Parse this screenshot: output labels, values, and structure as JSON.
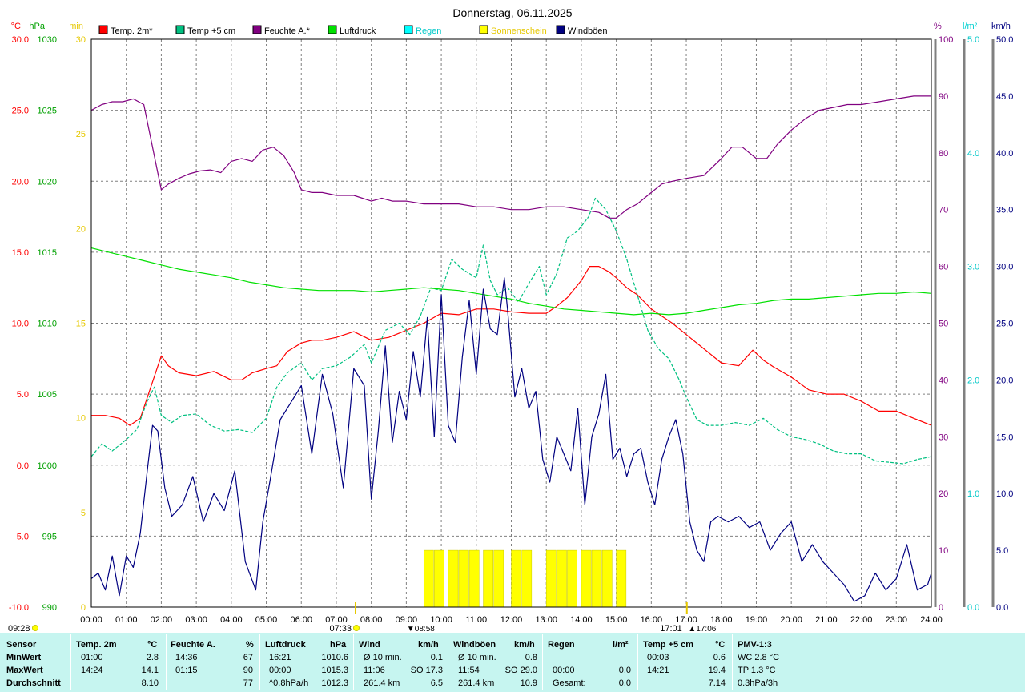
{
  "chart_data": {
    "type": "line",
    "title": "Donnerstag, 06.11.2025",
    "x_ticks": [
      "00:00",
      "01:00",
      "02:00",
      "03:00",
      "04:00",
      "05:00",
      "06:00",
      "07:00",
      "08:00",
      "09:00",
      "10:00",
      "11:00",
      "12:00",
      "13:00",
      "14:00",
      "15:00",
      "16:00",
      "17:00",
      "18:00",
      "19:00",
      "20:00",
      "21:00",
      "22:00",
      "23:00",
      "24:00"
    ],
    "axes": {
      "temp_c": {
        "unit": "°C",
        "color": "#ff0000",
        "ticks": [
          "30.0",
          "25.0",
          "20.0",
          "15.0",
          "10.0",
          "5.0",
          "0.0",
          "-5.0",
          "-10.0"
        ],
        "ylim": [
          -10,
          30
        ]
      },
      "pressure_hpa": {
        "unit": "hPa",
        "color": "#00a000",
        "ticks": [
          "1030",
          "1025",
          "1020",
          "1015",
          "1010",
          "1005",
          "1000",
          "995",
          "990"
        ],
        "ylim": [
          990,
          1030
        ]
      },
      "sunshine_min": {
        "unit": "min",
        "color": "#e6c800",
        "ticks": [
          "30",
          "25",
          "20",
          "15",
          "10",
          "5",
          "0"
        ],
        "ylim": [
          0,
          30
        ]
      },
      "humidity_pct": {
        "unit": "%",
        "color": "#800080",
        "ticks": [
          "100",
          "90",
          "80",
          "70",
          "60",
          "50",
          "40",
          "30",
          "20",
          "10",
          "0"
        ],
        "ylim": [
          0,
          100
        ]
      },
      "rain_lm2": {
        "unit": "l/m²",
        "color": "#00d0d0",
        "ticks": [
          "5.0",
          "4.0",
          "3.0",
          "2.0",
          "1.0",
          "0.0"
        ],
        "ylim": [
          0,
          5
        ]
      },
      "gust_kmh": {
        "unit": "km/h",
        "color": "#000080",
        "ticks": [
          "50.0",
          "45.0",
          "40.0",
          "35.0",
          "30.0",
          "25.0",
          "20.0",
          "15.0",
          "10.0",
          "5.0",
          "0.0"
        ],
        "ylim": [
          0,
          50
        ]
      }
    },
    "legend": [
      {
        "label": "Temp. 2m*",
        "color": "#ff0000"
      },
      {
        "label": "Temp +5 cm",
        "color": "#00c080"
      },
      {
        "label": "Feuchte A.*",
        "color": "#800080"
      },
      {
        "label": "Luftdruck",
        "color": "#00e000"
      },
      {
        "label": "Regen",
        "color": "#00ffff"
      },
      {
        "label": "Sonnenschein",
        "color": "#ffff00"
      },
      {
        "label": "Windböen",
        "color": "#000080"
      }
    ],
    "series": [
      {
        "name": "Temp. 2m*",
        "axis": "temp_c",
        "color": "#ff0000",
        "x": [
          0,
          0.4,
          0.8,
          1.1,
          1.4,
          1.7,
          2.0,
          2.2,
          2.5,
          3.0,
          3.5,
          4.0,
          4.3,
          4.6,
          5.0,
          5.3,
          5.6,
          6.0,
          6.3,
          6.6,
          7.0,
          7.5,
          8.0,
          8.5,
          9.0,
          9.5,
          10.0,
          10.5,
          11.0,
          11.5,
          12.0,
          12.5,
          13.0,
          13.3,
          13.6,
          14.0,
          14.24,
          14.5,
          14.8,
          15.0,
          15.3,
          15.6,
          16.0,
          16.3,
          16.6,
          17.0,
          17.5,
          18.0,
          18.5,
          18.9,
          19.2,
          19.5,
          20.0,
          20.5,
          21.0,
          21.5,
          22.0,
          22.5,
          23.0,
          23.5,
          24.0
        ],
        "y": [
          3.5,
          3.5,
          3.3,
          2.8,
          3.3,
          5.5,
          7.7,
          7.0,
          6.5,
          6.3,
          6.6,
          6.0,
          6.0,
          6.5,
          6.8,
          7.0,
          8.0,
          8.6,
          8.8,
          8.8,
          9.0,
          9.4,
          8.8,
          9.0,
          9.5,
          10.0,
          10.7,
          10.6,
          11.0,
          11.0,
          10.8,
          10.7,
          10.7,
          11.2,
          11.8,
          13.0,
          14.0,
          14.0,
          13.6,
          13.2,
          12.5,
          12.0,
          11.0,
          10.5,
          10.0,
          9.2,
          8.2,
          7.2,
          7.0,
          8.1,
          7.4,
          6.9,
          6.2,
          5.3,
          5.0,
          5.0,
          4.5,
          3.8,
          3.8,
          3.3,
          2.8
        ]
      },
      {
        "name": "Temp +5 cm",
        "axis": "temp_c",
        "color": "#00c080",
        "x": [
          0,
          0.3,
          0.6,
          1.0,
          1.3,
          1.6,
          1.8,
          2.0,
          2.3,
          2.6,
          3.0,
          3.4,
          3.8,
          4.2,
          4.6,
          5.0,
          5.3,
          5.6,
          6.0,
          6.3,
          6.6,
          7.0,
          7.4,
          7.8,
          8.0,
          8.4,
          8.8,
          9.1,
          9.4,
          9.7,
          10.0,
          10.3,
          10.6,
          11.0,
          11.2,
          11.4,
          11.6,
          11.9,
          12.2,
          12.5,
          12.8,
          13.0,
          13.3,
          13.6,
          13.9,
          14.21,
          14.4,
          14.7,
          15.0,
          15.3,
          15.6,
          15.9,
          16.2,
          16.5,
          16.8,
          17.0,
          17.3,
          17.6,
          18.0,
          18.4,
          18.8,
          19.2,
          19.6,
          20.0,
          20.4,
          20.8,
          21.2,
          21.6,
          22.0,
          22.4,
          22.8,
          23.2,
          23.6,
          24.0
        ],
        "y": [
          0.6,
          1.5,
          1.0,
          1.8,
          2.5,
          4.5,
          5.5,
          3.5,
          3.0,
          3.5,
          3.6,
          2.8,
          2.4,
          2.5,
          2.3,
          3.3,
          5.5,
          6.5,
          7.2,
          6.0,
          6.8,
          7.0,
          7.6,
          8.5,
          7.2,
          9.5,
          10.0,
          9.2,
          10.5,
          12.5,
          12.3,
          14.5,
          13.8,
          13.2,
          15.5,
          13.0,
          12.0,
          12.5,
          11.5,
          12.8,
          14.0,
          12.0,
          13.5,
          16.0,
          16.5,
          17.5,
          18.8,
          18.0,
          16.5,
          14.5,
          12.0,
          9.5,
          8.2,
          7.5,
          6.0,
          4.8,
          3.2,
          2.8,
          2.8,
          3.0,
          2.8,
          3.3,
          2.5,
          2.0,
          1.8,
          1.5,
          1.0,
          0.8,
          0.8,
          0.3,
          0.2,
          0.1,
          0.4,
          0.6
        ]
      },
      {
        "name": "Feuchte A.*",
        "axis": "humidity_pct",
        "color": "#800080",
        "x": [
          0,
          0.3,
          0.6,
          0.9,
          1.2,
          1.5,
          1.7,
          1.9,
          2.0,
          2.2,
          2.5,
          2.8,
          3.1,
          3.4,
          3.7,
          4.0,
          4.3,
          4.6,
          4.9,
          5.2,
          5.5,
          5.8,
          6.0,
          6.3,
          6.6,
          7.0,
          7.5,
          8.0,
          8.3,
          8.6,
          9.0,
          9.5,
          10.0,
          10.5,
          11.0,
          11.5,
          12.0,
          12.5,
          13.0,
          13.5,
          14.0,
          14.5,
          14.8,
          15.0,
          15.3,
          15.6,
          16.0,
          16.3,
          16.6,
          17.0,
          17.5,
          18.0,
          18.3,
          18.6,
          19.0,
          19.3,
          19.6,
          20.0,
          20.4,
          20.8,
          21.2,
          21.6,
          22.0,
          22.5,
          23.0,
          23.5,
          24.0
        ],
        "y": [
          87.5,
          88.5,
          89.0,
          89.0,
          89.5,
          88.5,
          82.5,
          76.5,
          73.5,
          74.5,
          75.5,
          76.3,
          76.8,
          77.0,
          76.5,
          78.5,
          79.0,
          78.5,
          80.5,
          81.0,
          79.5,
          76.5,
          73.5,
          73.0,
          73.0,
          72.5,
          72.5,
          71.5,
          72.0,
          71.5,
          71.5,
          71.0,
          71.0,
          71.0,
          70.5,
          70.5,
          70.0,
          70.0,
          70.5,
          70.5,
          70.0,
          69.5,
          68.5,
          68.5,
          70.0,
          71.0,
          73.0,
          74.5,
          75.0,
          75.5,
          76.0,
          79.0,
          81.0,
          81.0,
          79.0,
          79.0,
          81.5,
          84.0,
          86.0,
          87.5,
          88.0,
          88.5,
          88.5,
          89.0,
          89.5,
          90.0,
          90.0
        ]
      },
      {
        "name": "Luftdruck",
        "axis": "pressure_hpa",
        "color": "#00e000",
        "x": [
          0,
          0.5,
          1.0,
          1.5,
          2.0,
          2.5,
          3.0,
          3.5,
          4.0,
          4.5,
          5.0,
          5.5,
          6.0,
          6.5,
          7.0,
          7.5,
          8.0,
          8.5,
          9.0,
          9.5,
          10.0,
          10.5,
          11.0,
          11.5,
          12.0,
          12.5,
          13.0,
          13.5,
          14.0,
          14.5,
          15.0,
          15.5,
          16.0,
          16.5,
          17.0,
          17.5,
          18.0,
          18.5,
          19.0,
          19.5,
          20.0,
          20.5,
          21.0,
          21.5,
          22.0,
          22.5,
          23.0,
          23.5,
          24.0
        ],
        "y": [
          1015.3,
          1015.0,
          1014.7,
          1014.4,
          1014.1,
          1013.8,
          1013.6,
          1013.4,
          1013.2,
          1012.9,
          1012.7,
          1012.5,
          1012.4,
          1012.3,
          1012.3,
          1012.3,
          1012.2,
          1012.3,
          1012.4,
          1012.5,
          1012.4,
          1012.3,
          1012.1,
          1011.9,
          1011.7,
          1011.4,
          1011.2,
          1011.0,
          1010.9,
          1010.8,
          1010.7,
          1010.6,
          1010.7,
          1010.6,
          1010.7,
          1010.9,
          1011.1,
          1011.3,
          1011.4,
          1011.6,
          1011.7,
          1011.7,
          1011.8,
          1011.9,
          1012.0,
          1012.1,
          1012.1,
          1012.2,
          1012.1
        ]
      },
      {
        "name": "Regen",
        "axis": "rain_lm2",
        "color": "#00ffff",
        "x": [],
        "y": []
      },
      {
        "name": "Windböen",
        "axis": "gust_kmh",
        "color": "#000080",
        "x": [
          0,
          0.2,
          0.4,
          0.6,
          0.8,
          1.0,
          1.2,
          1.4,
          1.6,
          1.75,
          1.9,
          2.1,
          2.3,
          2.6,
          2.9,
          3.2,
          3.5,
          3.8,
          4.1,
          4.4,
          4.7,
          4.9,
          5.1,
          5.4,
          5.7,
          6.0,
          6.3,
          6.6,
          6.9,
          7.2,
          7.5,
          7.8,
          8.0,
          8.2,
          8.4,
          8.6,
          8.8,
          9.0,
          9.2,
          9.4,
          9.6,
          9.8,
          10.0,
          10.2,
          10.4,
          10.6,
          10.8,
          11.0,
          11.2,
          11.4,
          11.6,
          11.8,
          11.9,
          12.1,
          12.3,
          12.5,
          12.7,
          12.9,
          13.1,
          13.3,
          13.5,
          13.7,
          13.9,
          14.1,
          14.3,
          14.5,
          14.7,
          14.9,
          15.1,
          15.3,
          15.5,
          15.7,
          15.9,
          16.1,
          16.3,
          16.5,
          16.7,
          16.9,
          17.1,
          17.3,
          17.5,
          17.7,
          17.9,
          18.2,
          18.5,
          18.8,
          19.1,
          19.4,
          19.7,
          20.0,
          20.3,
          20.6,
          20.9,
          21.2,
          21.5,
          21.8,
          22.1,
          22.4,
          22.7,
          23.0,
          23.3,
          23.6,
          23.9,
          24.0
        ],
        "y": [
          2.5,
          3.0,
          1.5,
          4.5,
          1.0,
          4.5,
          3.5,
          6.5,
          12.0,
          16.0,
          15.5,
          10.5,
          8.0,
          9.0,
          11.5,
          7.5,
          10.0,
          8.5,
          12.0,
          4.0,
          1.5,
          7.5,
          11.0,
          16.5,
          18.0,
          19.5,
          13.5,
          20.5,
          17.0,
          10.5,
          21.0,
          19.5,
          9.5,
          15.5,
          23.0,
          14.5,
          19.0,
          16.5,
          22.5,
          18.5,
          25.5,
          15.0,
          27.5,
          16.0,
          14.5,
          22.0,
          27.0,
          20.5,
          28.0,
          24.5,
          24.0,
          29.0,
          26.0,
          18.5,
          21.0,
          17.5,
          19.0,
          13.0,
          11.0,
          15.0,
          13.5,
          12.0,
          17.5,
          9.0,
          15.0,
          17.0,
          20.5,
          13.0,
          14.0,
          11.5,
          13.5,
          14.0,
          11.0,
          9.0,
          13.0,
          15.0,
          16.5,
          13.5,
          7.5,
          5.0,
          4.0,
          7.5,
          8.0,
          7.5,
          8.0,
          7.0,
          7.5,
          5.0,
          6.5,
          7.5,
          4.0,
          5.5,
          4.0,
          3.0,
          2.0,
          0.5,
          1.0,
          3.0,
          1.5,
          2.5,
          5.5,
          1.5,
          2.0,
          3.0
        ]
      },
      {
        "name": "Sonnenschein",
        "axis": "sunshine_min",
        "color": "#ffff00",
        "type": "bar",
        "x": [
          9.5,
          9.8,
          10.2,
          10.5,
          10.8,
          11.2,
          11.5,
          12.0,
          12.3,
          13.0,
          13.3,
          13.6,
          14.0,
          14.3,
          14.6,
          15.0
        ],
        "y": [
          3,
          3,
          3,
          3,
          3,
          3,
          3,
          3,
          3,
          3,
          3,
          3,
          3,
          3,
          3,
          3
        ]
      }
    ],
    "markers": {
      "sunrise": "07:33",
      "solar_noon": "08:58",
      "sunset_start": "17:01",
      "sunset_end": "17:06",
      "day_start": "09:28"
    },
    "grid": true
  },
  "footer": {
    "headers": {
      "sensor": "Sensor",
      "temp2m": "Temp. 2m",
      "temp2m_unit": "°C",
      "humidity": "Feuchte A.",
      "humidity_unit": "%",
      "pressure": "Luftdruck",
      "pressure_unit": "hPa",
      "wind": "Wind",
      "wind_unit": "km/h",
      "gust": "Windböen",
      "gust_unit": "km/h",
      "rain": "Regen",
      "rain_unit": "l/m²",
      "temp5": "Temp +5 cm",
      "temp5_unit": "°C",
      "pmv": "PMV-1:3"
    },
    "rows": [
      {
        "label": "MinWert",
        "t2_time": "01:00",
        "t2_val": "2.8",
        "h_time": "14:36",
        "h_val": "67",
        "p_time": "16:21",
        "p_val": "1010.6",
        "w_time": "Ø 10 min.",
        "w_val": "0.1",
        "g_time": "Ø 10 min.",
        "g_val": "0.8",
        "r_time": "",
        "r_val": "",
        "t5_time": "00:03",
        "t5_val": "0.6",
        "pmv": "WC 2.8 °C"
      },
      {
        "label": "MaxWert",
        "t2_time": "14:24",
        "t2_val": "14.1",
        "h_time": "01:15",
        "h_val": "90",
        "p_time": "00:00",
        "p_val": "1015.3",
        "w_time": "11:06",
        "w_val": "SO 17.3",
        "g_time": "11:54",
        "g_val": "SO 29.0",
        "r_time": "00:00",
        "r_val": "0.0",
        "t5_time": "14:21",
        "t5_val": "19.4",
        "pmv": "TP 1.3 °C"
      },
      {
        "label": "Durchschnitt",
        "t2_time": "",
        "t2_val": "8.10",
        "h_time": "",
        "h_val": "77",
        "p_time": "^0.8hPa/h",
        "p_val": "1012.3",
        "w_time": "261.4 km",
        "w_val": "6.5",
        "g_time": "261.4 km",
        "g_val": "10.9",
        "r_time": "Gesamt:",
        "r_val": "0.0",
        "t5_time": "",
        "t5_val": "7.14",
        "pmv": "0.3hPa/3h"
      }
    ]
  }
}
